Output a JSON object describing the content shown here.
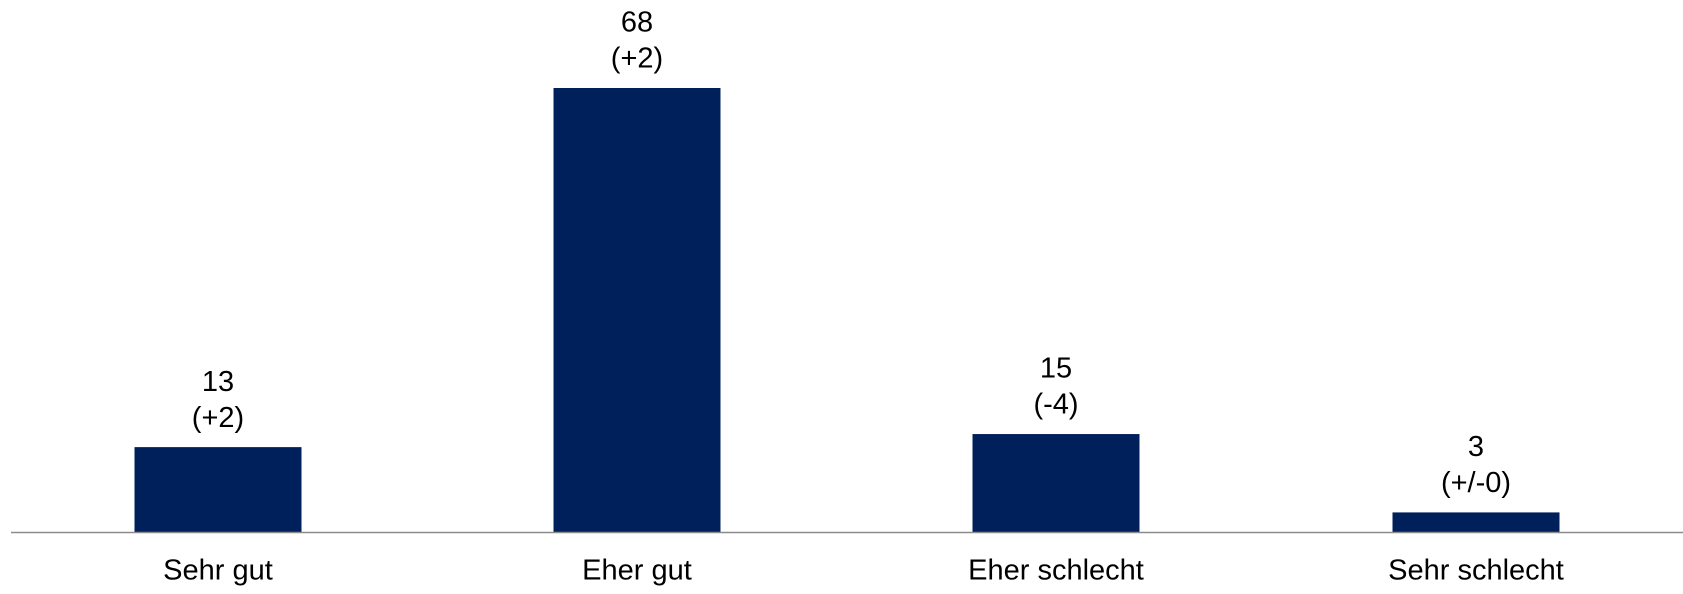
{
  "chart_data": {
    "type": "bar",
    "categories": [
      "Sehr gut",
      "Eher gut",
      "Eher schlecht",
      "Sehr schlecht"
    ],
    "values": [
      13,
      68,
      15,
      3
    ],
    "change_labels": [
      "(+2)",
      "(+2)",
      "(-4)",
      "(+/-0)"
    ],
    "color": "#00205b"
  }
}
